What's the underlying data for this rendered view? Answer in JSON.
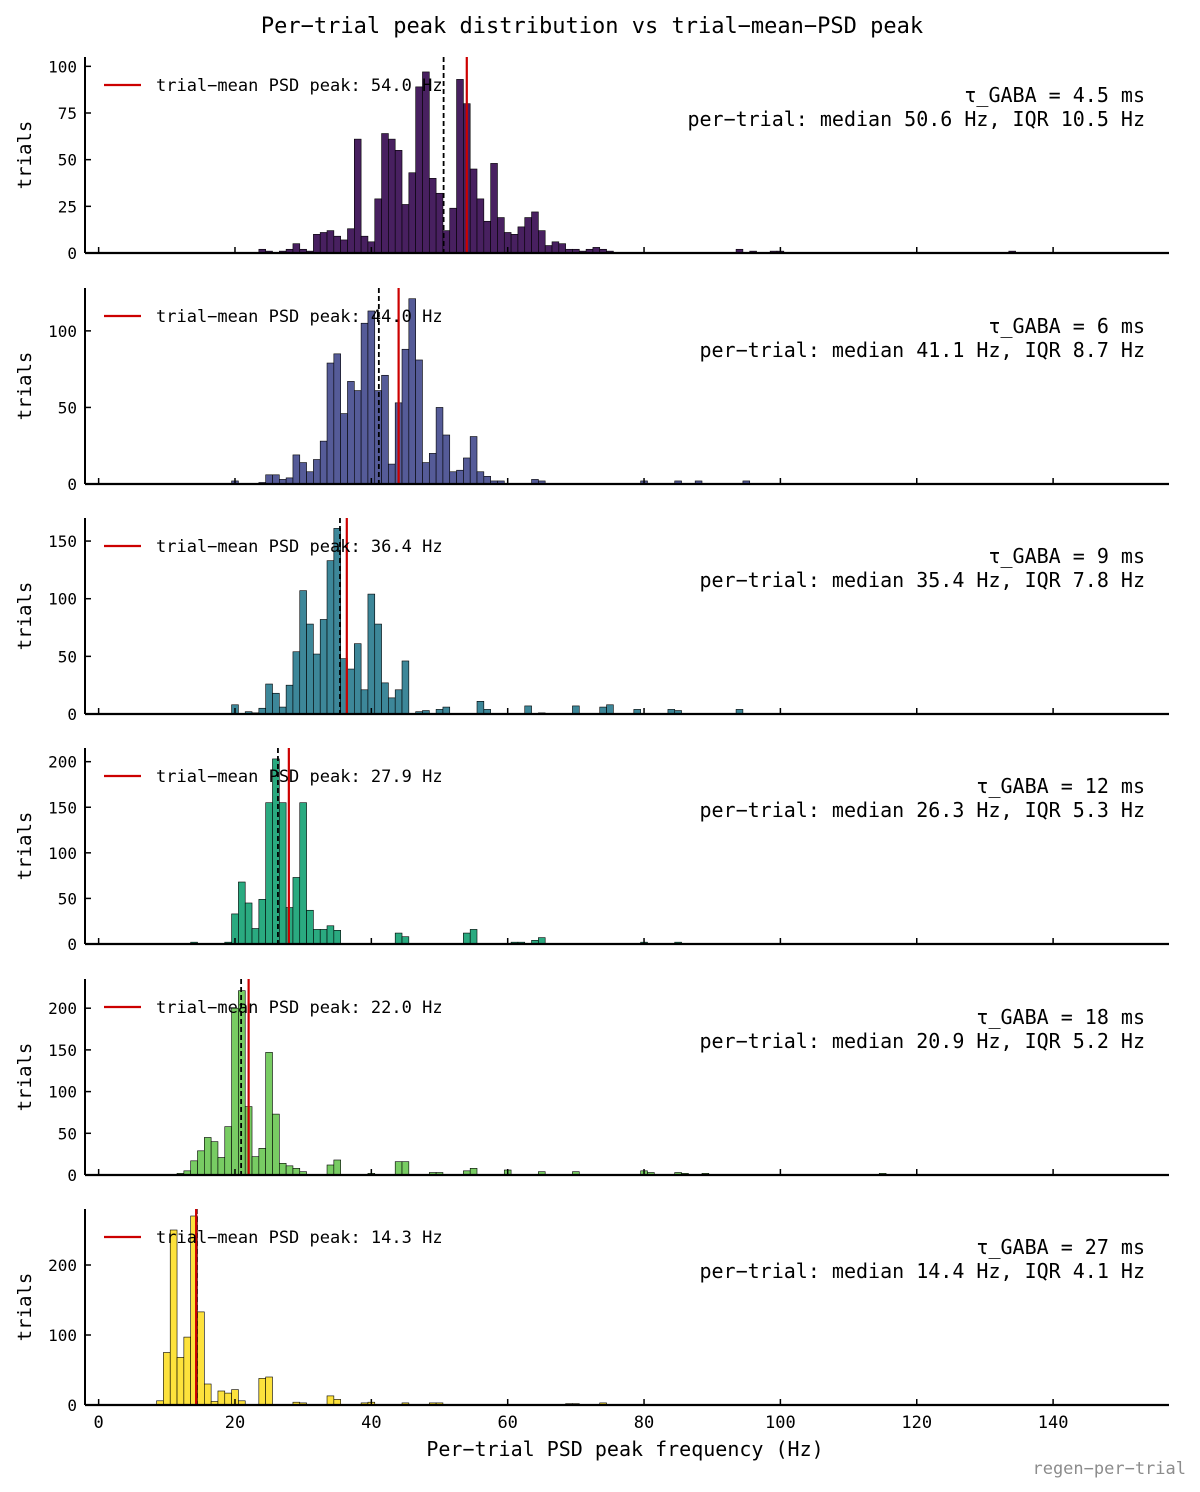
{
  "figure": {
    "title": "Per−trial peak distribution vs trial−mean−PSD peak",
    "xlabel": "Per−trial PSD peak frequency (Hz)",
    "ylabel": "trials",
    "watermark": "regen−per−trial",
    "legend_label_prefix": "trial−mean PSD peak: ",
    "x_ticks": [
      0,
      20,
      40,
      60,
      80,
      100,
      120,
      140
    ],
    "xlim": [
      -2,
      157
    ],
    "bin_width": 1.0,
    "colors": {
      "mean_line": "#cc0000",
      "median_line": "#000000",
      "axis": "#000000"
    }
  },
  "chart_data": [
    {
      "type": "bar",
      "panel_label": "τ_GABA = 4.5 ms",
      "stats_label": "per−trial: median 50.6 Hz, IQR 10.5 Hz",
      "legend_label": "trial−mean PSD peak: 54.0 Hz",
      "mean_peak_hz": 54.0,
      "median_hz": 50.6,
      "color": "#482060",
      "ylim": [
        0,
        105
      ],
      "y_ticks": [
        0,
        25,
        50,
        75,
        100
      ],
      "x": [
        24,
        25,
        27,
        28,
        29,
        30,
        31,
        32,
        33,
        34,
        35,
        36,
        37,
        38,
        39,
        40,
        41,
        42,
        43,
        44,
        45,
        46,
        47,
        48,
        49,
        50,
        51,
        52,
        53,
        54,
        55,
        56,
        57,
        58,
        59,
        60,
        61,
        62,
        63,
        64,
        65,
        66,
        67,
        68,
        69,
        70,
        71,
        72,
        73,
        74,
        75,
        94,
        96,
        99,
        100,
        134
      ],
      "values": [
        2,
        1,
        1,
        2,
        5,
        2,
        1,
        10,
        11,
        12,
        9,
        7,
        13,
        61,
        9,
        6,
        29,
        64,
        61,
        55,
        26,
        43,
        89,
        97,
        40,
        32,
        12,
        24,
        93,
        80,
        45,
        29,
        17,
        48,
        19,
        11,
        10,
        14,
        19,
        22,
        12,
        4,
        6,
        5,
        2,
        2,
        1,
        2,
        3,
        2,
        1,
        2,
        1,
        1,
        1,
        1
      ]
    },
    {
      "type": "bar",
      "panel_label": "τ_GABA = 6 ms",
      "stats_label": "per−trial: median 41.1 Hz, IQR 8.7 Hz",
      "legend_label": "trial−mean PSD peak: 44.0 Hz",
      "mean_peak_hz": 44.0,
      "median_hz": 41.1,
      "color": "#555b98",
      "ylim": [
        0,
        128
      ],
      "y_ticks": [
        0,
        50,
        100
      ],
      "x": [
        20,
        24,
        25,
        26,
        27,
        28,
        29,
        30,
        31,
        32,
        33,
        34,
        35,
        36,
        37,
        38,
        39,
        40,
        41,
        42,
        43,
        44,
        45,
        46,
        47,
        48,
        49,
        50,
        51,
        52,
        53,
        54,
        55,
        56,
        57,
        58,
        59,
        64,
        65,
        80,
        85,
        88,
        95
      ],
      "values": [
        2,
        1,
        6,
        6,
        3,
        4,
        19,
        14,
        8,
        16,
        28,
        79,
        85,
        46,
        67,
        61,
        105,
        113,
        61,
        71,
        13,
        53,
        88,
        121,
        81,
        14,
        20,
        50,
        32,
        8,
        9,
        17,
        31,
        8,
        5,
        2,
        2,
        3,
        2,
        2,
        2,
        2,
        2
      ]
    },
    {
      "type": "bar",
      "panel_label": "τ_GABA = 9 ms",
      "stats_label": "per−trial: median 35.4 Hz, IQR 7.8 Hz",
      "legend_label": "trial−mean PSD peak: 36.4 Hz",
      "mean_peak_hz": 36.4,
      "median_hz": 35.4,
      "color": "#3d8799",
      "ylim": [
        0,
        170
      ],
      "y_ticks": [
        0,
        50,
        100,
        150
      ],
      "x": [
        20,
        22,
        23,
        24,
        25,
        26,
        27,
        28,
        29,
        30,
        31,
        32,
        33,
        34,
        35,
        36,
        37,
        38,
        39,
        40,
        41,
        42,
        43,
        44,
        45,
        47,
        48,
        50,
        51,
        56,
        57,
        63,
        65,
        70,
        74,
        75,
        79,
        84,
        85,
        94
      ],
      "values": [
        8,
        2,
        1,
        5,
        26,
        18,
        6,
        25,
        54,
        107,
        78,
        52,
        82,
        133,
        161,
        48,
        39,
        61,
        21,
        104,
        78,
        27,
        14,
        21,
        46,
        2,
        3,
        4,
        6,
        11,
        4,
        7,
        1,
        7,
        6,
        8,
        4,
        4,
        3,
        4
      ]
    },
    {
      "type": "bar",
      "panel_label": "τ_GABA = 12 ms",
      "stats_label": "per−trial: median 26.3 Hz, IQR 5.3 Hz",
      "legend_label": "trial−mean PSD peak: 27.9 Hz",
      "mean_peak_hz": 27.9,
      "median_hz": 26.3,
      "color": "#2aaa80",
      "ylim": [
        0,
        215
      ],
      "y_ticks": [
        0,
        50,
        100,
        150,
        200
      ],
      "x": [
        14,
        19,
        20,
        21,
        22,
        23,
        24,
        25,
        26,
        27,
        28,
        29,
        30,
        31,
        32,
        33,
        34,
        35,
        44,
        45,
        54,
        55,
        61,
        62,
        64,
        65,
        80,
        85
      ],
      "values": [
        2,
        2,
        33,
        68,
        45,
        17,
        49,
        155,
        203,
        155,
        40,
        73,
        155,
        37,
        16,
        16,
        20,
        15,
        12,
        8,
        12,
        16,
        2,
        2,
        4,
        7,
        2,
        2
      ]
    },
    {
      "type": "bar",
      "panel_label": "τ_GABA = 18 ms",
      "stats_label": "per−trial: median 20.9 Hz, IQR 5.2 Hz",
      "legend_label": "trial−mean PSD peak: 22.0 Hz",
      "mean_peak_hz": 22.0,
      "median_hz": 20.9,
      "color": "#78cc63",
      "ylim": [
        0,
        235
      ],
      "y_ticks": [
        0,
        50,
        100,
        150,
        200
      ],
      "x": [
        12,
        13,
        14,
        15,
        16,
        17,
        18,
        19,
        20,
        21,
        22,
        23,
        24,
        25,
        26,
        27,
        28,
        29,
        30,
        34,
        35,
        40,
        44,
        45,
        49,
        50,
        54,
        55,
        60,
        65,
        70,
        80,
        81,
        85,
        86,
        89,
        115
      ],
      "values": [
        2,
        5,
        17,
        29,
        45,
        40,
        21,
        58,
        200,
        221,
        82,
        22,
        32,
        147,
        73,
        14,
        11,
        8,
        4,
        12,
        18,
        2,
        16,
        16,
        3,
        3,
        5,
        8,
        6,
        4,
        4,
        5,
        3,
        3,
        2,
        2,
        2
      ]
    },
    {
      "type": "bar",
      "panel_label": "τ_GABA = 27 ms",
      "stats_label": "per−trial: median 14.4 Hz, IQR 4.1 Hz",
      "legend_label": "trial−mean PSD peak: 14.3 Hz",
      "mean_peak_hz": 14.3,
      "median_hz": 14.4,
      "color": "#fde23c",
      "ylim": [
        0,
        280
      ],
      "y_ticks": [
        0,
        100,
        200
      ],
      "x": [
        9,
        10,
        11,
        12,
        13,
        14,
        15,
        16,
        17,
        18,
        19,
        20,
        21,
        24,
        25,
        29,
        30,
        34,
        35,
        39,
        40,
        45,
        49,
        50,
        69,
        70,
        74
      ],
      "values": [
        6,
        75,
        250,
        68,
        97,
        270,
        133,
        30,
        5,
        20,
        17,
        22,
        6,
        38,
        40,
        4,
        3,
        13,
        8,
        3,
        4,
        3,
        3,
        3,
        2,
        2,
        3
      ]
    }
  ]
}
